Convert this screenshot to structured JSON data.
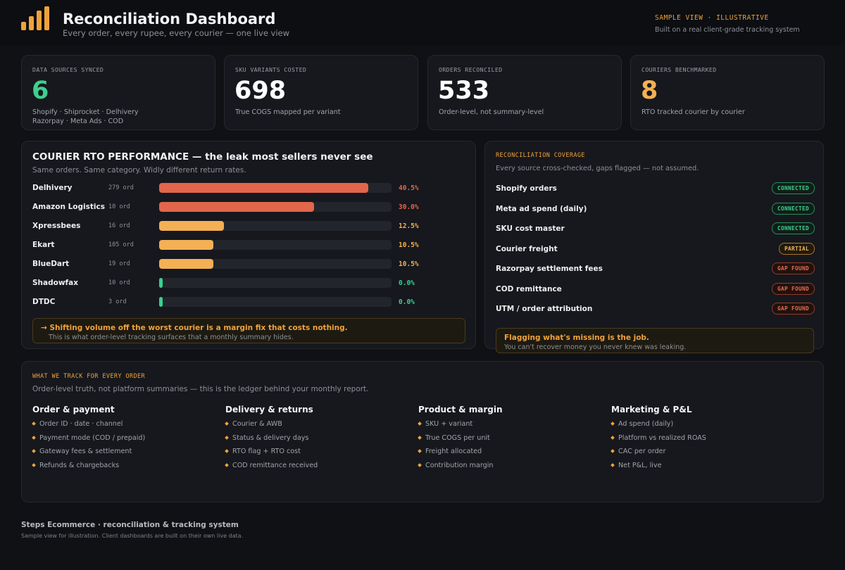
{
  "header": {
    "logo_icon": "bar-chart-icon",
    "title": "Reconciliation Dashboard",
    "subtitle": "Every order, every rupee, every courier — one live view",
    "sample_tag": "SAMPLE VIEW · ILLUSTRATIVE",
    "sample_sub": "Built on a real client-grade tracking system"
  },
  "colors": {
    "accent": "#f0a23b",
    "green": "#3ecf8e",
    "red": "#e2664c",
    "bar_high": "#e2664c",
    "bar_mid": "#f4b054",
    "bar_low": "#3ecf8e"
  },
  "stats": [
    {
      "label": "DATA SOURCES SYNCED",
      "value": "6",
      "color": "#3ecf8e",
      "desc": [
        "Shopify · Shiprocket · Delhivery",
        "Razorpay · Meta Ads · COD"
      ]
    },
    {
      "label": "SKU VARIANTS COSTED",
      "value": "698",
      "color": "#ffffff",
      "desc": [
        "True COGS mapped per variant"
      ]
    },
    {
      "label": "ORDERS RECONCILED",
      "value": "533",
      "color": "#ffffff",
      "desc": [
        "Order-level, not summary-level"
      ]
    },
    {
      "label": "COURIERS BENCHMARKED",
      "value": "8",
      "color": "#f4b054",
      "desc": [
        "RTO tracked courier by courier"
      ]
    }
  ],
  "rto": {
    "title": "COURIER RTO PERFORMANCE — the leak most sellers never see",
    "subtitle": "Same orders. Same category. Widly different return rates.",
    "max_pct": 45,
    "rows": [
      {
        "name": "Delhivery",
        "orders": "279 ord",
        "pct": 40.5,
        "pct_label": "40.5%"
      },
      {
        "name": "Amazon Logistics",
        "orders": "10 ord",
        "pct": 30.0,
        "pct_label": "30.0%"
      },
      {
        "name": "Xpressbees",
        "orders": "16 ord",
        "pct": 12.5,
        "pct_label": "12.5%"
      },
      {
        "name": "Ekart",
        "orders": "105 ord",
        "pct": 10.5,
        "pct_label": "10.5%"
      },
      {
        "name": "BlueDart",
        "orders": "19 ord",
        "pct": 10.5,
        "pct_label": "10.5%"
      },
      {
        "name": "Shadowfax",
        "orders": "10 ord",
        "pct": 0.0,
        "pct_label": "0.0%"
      },
      {
        "name": "DTDC",
        "orders": "3 ord",
        "pct": 0.0,
        "pct_label": "0.0%"
      }
    ],
    "callout_main": "→  Shifting volume off the worst courier is a margin fix that costs nothing.",
    "callout_sub": "This is what order-level tracking surfaces that a monthly summary hides."
  },
  "coverage": {
    "label": "RECONCILIATION COVERAGE",
    "subtitle": "Every source cross-checked, gaps flagged — not assumed.",
    "rows": [
      {
        "name": "Shopify orders",
        "status": "CONNECTED",
        "kind": "connected"
      },
      {
        "name": "Meta ad spend (daily)",
        "status": "CONNECTED",
        "kind": "connected"
      },
      {
        "name": "SKU cost master",
        "status": "CONNECTED",
        "kind": "connected"
      },
      {
        "name": "Courier freight",
        "status": "PARTIAL",
        "kind": "partial"
      },
      {
        "name": "Razorpay settlement fees",
        "status": "GAP FOUND",
        "kind": "gap"
      },
      {
        "name": "COD remittance",
        "status": "GAP FOUND",
        "kind": "gap"
      },
      {
        "name": "UTM / order attribution",
        "status": "GAP FOUND",
        "kind": "gap"
      }
    ],
    "callout_main": "Flagging what's missing is the job.",
    "callout_sub": "You can't recover money you never knew was leaking."
  },
  "tracking": {
    "label": "WHAT WE TRACK FOR EVERY ORDER",
    "subtitle": "Order-level truth, not platform summaries — this is the ledger behind your monthly report.",
    "columns": [
      {
        "title": "Order & payment",
        "items": [
          "Order ID · date · channel",
          "Payment mode (COD / prepaid)",
          "Gateway fees & settlement",
          "Refunds & chargebacks"
        ]
      },
      {
        "title": "Delivery & returns",
        "items": [
          "Courier & AWB",
          "Status & delivery days",
          "RTO flag + RTO cost",
          "COD remittance received"
        ]
      },
      {
        "title": "Product & margin",
        "items": [
          "SKU + variant",
          "True COGS per unit",
          "Freight allocated",
          "Contribution margin"
        ]
      },
      {
        "title": "Marketing & P&L",
        "items": [
          "Ad spend (daily)",
          "Platform vs realized ROAS",
          "CAC per order",
          "Net P&L, live"
        ]
      }
    ]
  },
  "footer": {
    "title": "Steps Ecommerce · reconciliation & tracking system",
    "subtitle": "Sample view for illustration. Client dashboards are built on their own live data."
  }
}
